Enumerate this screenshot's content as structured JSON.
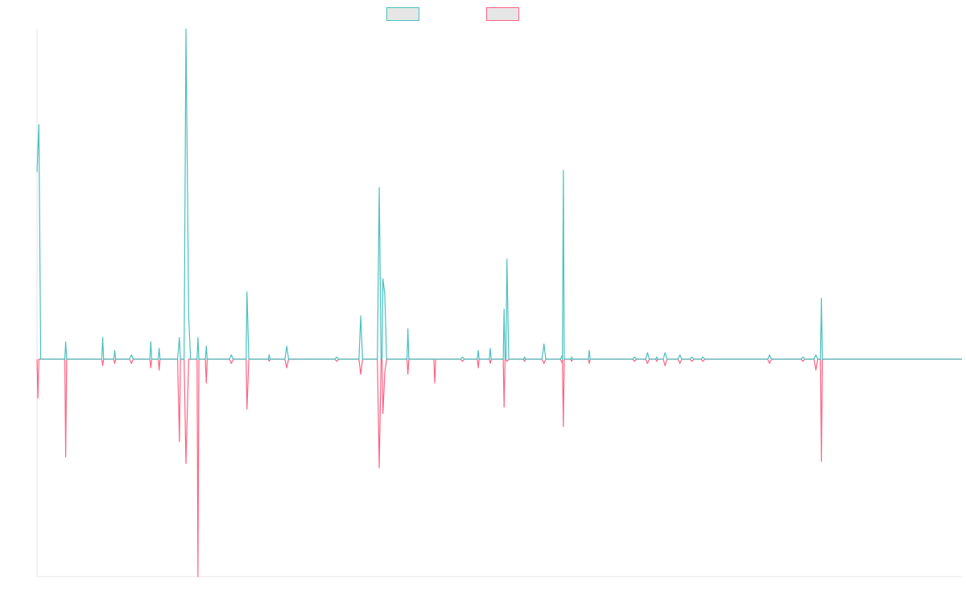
{
  "chart_data": {
    "type": "line",
    "title": "",
    "xlabel": "",
    "ylabel": "",
    "legend_position": "top",
    "grid": false,
    "ylim": [
      -1.0,
      1.52
    ],
    "xlim": [
      0,
      100
    ],
    "colors": [
      "#4bc0c0",
      "#ff6384"
    ],
    "series": [
      {
        "name": "",
        "color": "#4bc0c0",
        "points": [
          [
            0,
            0.86
          ],
          [
            0.2,
            1.08
          ],
          [
            0.4,
            0.0
          ],
          [
            3.0,
            0.0
          ],
          [
            3.1,
            0.08
          ],
          [
            3.2,
            0.0
          ],
          [
            7.0,
            0.0
          ],
          [
            7.1,
            0.1
          ],
          [
            7.2,
            0.0
          ],
          [
            8.3,
            0.0
          ],
          [
            8.4,
            0.04
          ],
          [
            8.5,
            0.0
          ],
          [
            10.0,
            0.0
          ],
          [
            10.2,
            0.02
          ],
          [
            10.4,
            0.0
          ],
          [
            12.2,
            0.0
          ],
          [
            12.3,
            0.08
          ],
          [
            12.4,
            0.0
          ],
          [
            13.1,
            0.0
          ],
          [
            13.2,
            0.05
          ],
          [
            13.3,
            0.0
          ],
          [
            15.2,
            0.0
          ],
          [
            15.4,
            0.1
          ],
          [
            15.5,
            0.0
          ],
          [
            15.9,
            0.0
          ],
          [
            16.1,
            1.52
          ],
          [
            16.4,
            0.2
          ],
          [
            16.6,
            0.0
          ],
          [
            17.3,
            0.0
          ],
          [
            17.4,
            0.1
          ],
          [
            17.5,
            0.0
          ],
          [
            18.2,
            0.0
          ],
          [
            18.3,
            0.06
          ],
          [
            18.4,
            0.0
          ],
          [
            20.8,
            0.0
          ],
          [
            21.0,
            0.02
          ],
          [
            21.2,
            0.0
          ],
          [
            22.6,
            0.0
          ],
          [
            22.7,
            0.31
          ],
          [
            22.9,
            0.0
          ],
          [
            25.0,
            0.0
          ],
          [
            25.1,
            0.02
          ],
          [
            25.2,
            0.0
          ],
          [
            26.8,
            0.0
          ],
          [
            27.0,
            0.06
          ],
          [
            27.2,
            0.0
          ],
          [
            32.2,
            0.0
          ],
          [
            32.4,
            0.01
          ],
          [
            32.6,
            0.0
          ],
          [
            34.8,
            0.0
          ],
          [
            35.0,
            0.2
          ],
          [
            35.2,
            0.0
          ],
          [
            36.8,
            0.0
          ],
          [
            37.0,
            0.79
          ],
          [
            37.2,
            0.0
          ],
          [
            37.3,
            0.0
          ],
          [
            37.4,
            0.37
          ],
          [
            37.6,
            0.3
          ],
          [
            37.8,
            0.0
          ],
          [
            40.0,
            0.0
          ],
          [
            40.1,
            0.14
          ],
          [
            40.2,
            0.0
          ],
          [
            45.8,
            0.0
          ],
          [
            46.0,
            0.01
          ],
          [
            46.2,
            0.0
          ],
          [
            47.6,
            0.0
          ],
          [
            47.7,
            0.04
          ],
          [
            47.8,
            0.0
          ],
          [
            48.9,
            0.0
          ],
          [
            49.0,
            0.05
          ],
          [
            49.1,
            0.0
          ],
          [
            50.4,
            0.0
          ],
          [
            50.5,
            0.23
          ],
          [
            50.6,
            0.0
          ],
          [
            50.7,
            0.0
          ],
          [
            50.8,
            0.46
          ],
          [
            51.0,
            0.0
          ],
          [
            52.6,
            0.0
          ],
          [
            52.7,
            0.01
          ],
          [
            52.8,
            0.0
          ],
          [
            54.6,
            0.0
          ],
          [
            54.8,
            0.07
          ],
          [
            55.0,
            0.0
          ],
          [
            56.6,
            0.0
          ],
          [
            56.8,
            0.02
          ],
          [
            57.0,
            0.0
          ],
          [
            56.8,
            0.0
          ],
          [
            56.9,
            0.87
          ],
          [
            57.0,
            0.0
          ],
          [
            57.7,
            0.0
          ],
          [
            57.8,
            0.01
          ],
          [
            57.9,
            0.0
          ],
          [
            59.6,
            0.0
          ],
          [
            59.7,
            0.04
          ],
          [
            59.8,
            0.0
          ],
          [
            64.4,
            0.0
          ],
          [
            64.6,
            0.01
          ],
          [
            64.8,
            0.0
          ],
          [
            65.8,
            0.0
          ],
          [
            66.0,
            0.03
          ],
          [
            66.2,
            0.0
          ],
          [
            66.9,
            0.0
          ],
          [
            67.0,
            0.01
          ],
          [
            67.1,
            0.0
          ],
          [
            67.7,
            0.0
          ],
          [
            67.9,
            0.03
          ],
          [
            68.1,
            0.0
          ],
          [
            69.3,
            0.0
          ],
          [
            69.5,
            0.02
          ],
          [
            69.7,
            0.0
          ],
          [
            70.6,
            0.0
          ],
          [
            70.8,
            0.01
          ],
          [
            71.0,
            0.0
          ],
          [
            71.8,
            0.0
          ],
          [
            72.0,
            0.01
          ],
          [
            72.2,
            0.0
          ],
          [
            79.0,
            0.0
          ],
          [
            79.2,
            0.02
          ],
          [
            79.4,
            0.0
          ],
          [
            82.6,
            0.0
          ],
          [
            82.8,
            0.01
          ],
          [
            83.0,
            0.0
          ],
          [
            84.0,
            0.0
          ],
          [
            84.2,
            0.02
          ],
          [
            84.4,
            0.0
          ],
          [
            84.7,
            0.0
          ],
          [
            84.8,
            0.28
          ],
          [
            84.9,
            0.0
          ],
          [
            100,
            0.0
          ]
        ]
      },
      {
        "name": "",
        "color": "#ff6384",
        "points": [
          [
            0,
            0.0
          ],
          [
            0.1,
            -0.18
          ],
          [
            0.2,
            0.0
          ],
          [
            3.0,
            0.0
          ],
          [
            3.1,
            -0.45
          ],
          [
            3.2,
            0.0
          ],
          [
            7.0,
            0.0
          ],
          [
            7.1,
            -0.03
          ],
          [
            7.2,
            0.0
          ],
          [
            8.3,
            0.0
          ],
          [
            8.4,
            -0.02
          ],
          [
            8.5,
            0.0
          ],
          [
            10.0,
            0.0
          ],
          [
            10.2,
            -0.02
          ],
          [
            10.4,
            0.0
          ],
          [
            12.2,
            0.0
          ],
          [
            12.3,
            -0.04
          ],
          [
            12.4,
            0.0
          ],
          [
            13.1,
            0.0
          ],
          [
            13.2,
            -0.05
          ],
          [
            13.3,
            0.0
          ],
          [
            15.2,
            0.0
          ],
          [
            15.4,
            -0.38
          ],
          [
            15.5,
            0.0
          ],
          [
            15.9,
            0.0
          ],
          [
            16.1,
            -0.48
          ],
          [
            16.4,
            0.0
          ],
          [
            17.3,
            0.0
          ],
          [
            17.4,
            -1.0
          ],
          [
            17.5,
            0.0
          ],
          [
            18.2,
            0.0
          ],
          [
            18.3,
            -0.11
          ],
          [
            18.4,
            0.0
          ],
          [
            20.8,
            0.0
          ],
          [
            21.0,
            -0.02
          ],
          [
            21.2,
            0.0
          ],
          [
            22.6,
            0.0
          ],
          [
            22.7,
            -0.23
          ],
          [
            22.9,
            0.0
          ],
          [
            25.0,
            0.0
          ],
          [
            25.1,
            -0.01
          ],
          [
            25.2,
            0.0
          ],
          [
            26.8,
            0.0
          ],
          [
            27.0,
            -0.04
          ],
          [
            27.2,
            0.0
          ],
          [
            32.2,
            0.0
          ],
          [
            32.4,
            -0.01
          ],
          [
            32.6,
            0.0
          ],
          [
            34.8,
            0.0
          ],
          [
            35.0,
            -0.07
          ],
          [
            35.2,
            0.0
          ],
          [
            36.8,
            0.0
          ],
          [
            37.0,
            -0.5
          ],
          [
            37.2,
            0.0
          ],
          [
            37.3,
            0.0
          ],
          [
            37.4,
            -0.25
          ],
          [
            37.6,
            -0.06
          ],
          [
            37.8,
            0.0
          ],
          [
            40.0,
            0.0
          ],
          [
            40.1,
            -0.07
          ],
          [
            40.2,
            0.0
          ],
          [
            42.9,
            0.0
          ],
          [
            43.0,
            -0.11
          ],
          [
            43.1,
            0.0
          ],
          [
            45.8,
            0.0
          ],
          [
            46.0,
            -0.01
          ],
          [
            46.2,
            0.0
          ],
          [
            47.6,
            0.0
          ],
          [
            47.7,
            -0.04
          ],
          [
            47.8,
            0.0
          ],
          [
            48.9,
            0.0
          ],
          [
            49.0,
            -0.02
          ],
          [
            49.1,
            0.0
          ],
          [
            50.4,
            0.0
          ],
          [
            50.5,
            -0.22
          ],
          [
            50.6,
            0.0
          ],
          [
            50.7,
            0.0
          ],
          [
            50.8,
            -0.01
          ],
          [
            51.0,
            0.0
          ],
          [
            52.6,
            0.0
          ],
          [
            52.7,
            -0.01
          ],
          [
            52.8,
            0.0
          ],
          [
            54.6,
            0.0
          ],
          [
            54.8,
            -0.02
          ],
          [
            55.0,
            0.0
          ],
          [
            56.6,
            0.0
          ],
          [
            56.8,
            -0.02
          ],
          [
            57.0,
            0.0
          ],
          [
            56.8,
            0.0
          ],
          [
            56.9,
            -0.31
          ],
          [
            57.0,
            0.0
          ],
          [
            57.7,
            0.0
          ],
          [
            57.8,
            -0.01
          ],
          [
            57.9,
            0.0
          ],
          [
            59.6,
            0.0
          ],
          [
            59.7,
            -0.02
          ],
          [
            59.8,
            0.0
          ],
          [
            64.4,
            0.0
          ],
          [
            64.6,
            -0.01
          ],
          [
            64.8,
            0.0
          ],
          [
            65.8,
            0.0
          ],
          [
            66.0,
            -0.02
          ],
          [
            66.2,
            0.0
          ],
          [
            66.9,
            0.0
          ],
          [
            67.0,
            -0.01
          ],
          [
            67.1,
            0.0
          ],
          [
            67.7,
            0.0
          ],
          [
            67.9,
            -0.03
          ],
          [
            68.1,
            0.0
          ],
          [
            69.3,
            0.0
          ],
          [
            69.5,
            -0.02
          ],
          [
            69.7,
            0.0
          ],
          [
            70.6,
            0.0
          ],
          [
            70.8,
            -0.01
          ],
          [
            71.0,
            0.0
          ],
          [
            71.8,
            0.0
          ],
          [
            72.0,
            -0.01
          ],
          [
            72.2,
            0.0
          ],
          [
            79.0,
            0.0
          ],
          [
            79.2,
            -0.02
          ],
          [
            79.4,
            0.0
          ],
          [
            82.6,
            0.0
          ],
          [
            82.8,
            -0.01
          ],
          [
            83.0,
            0.0
          ],
          [
            84.0,
            0.0
          ],
          [
            84.2,
            -0.05
          ],
          [
            84.4,
            0.0
          ],
          [
            84.7,
            0.0
          ],
          [
            84.8,
            -0.47
          ],
          [
            84.9,
            0.0
          ],
          [
            100,
            0.0
          ]
        ]
      }
    ]
  }
}
